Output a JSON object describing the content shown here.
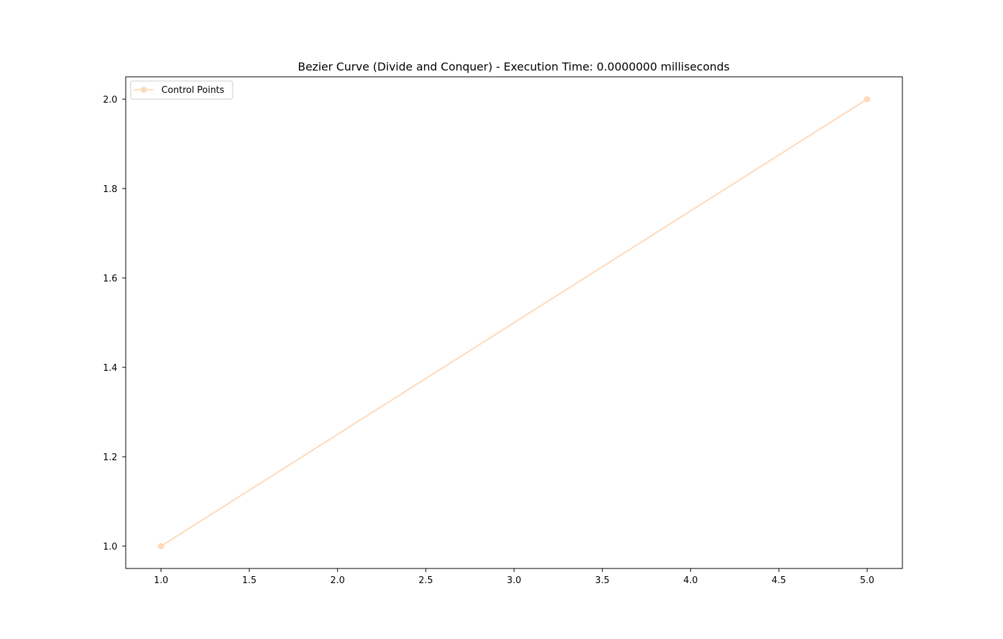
{
  "chart_data": {
    "type": "line",
    "title": "Bezier Curve (Divide and Conquer) - Execution Time: 0.0000000 milliseconds",
    "xlabel": "",
    "ylabel": "",
    "xlim": [
      0.8,
      5.2
    ],
    "ylim": [
      0.95,
      2.05
    ],
    "xticks": [
      1.0,
      1.5,
      2.0,
      2.5,
      3.0,
      3.5,
      4.0,
      4.5,
      5.0
    ],
    "xtick_labels": [
      "1.0",
      "1.5",
      "2.0",
      "2.5",
      "3.0",
      "3.5",
      "4.0",
      "4.5",
      "5.0"
    ],
    "yticks": [
      1.0,
      1.2,
      1.4,
      1.6,
      1.8,
      2.0
    ],
    "ytick_labels": [
      "1.0",
      "1.2",
      "1.4",
      "1.6",
      "1.8",
      "2.0"
    ],
    "grid": false,
    "legend_position": "upper-left",
    "series": [
      {
        "name": "Control Points",
        "color": "#FFDAB9",
        "marker": "circle",
        "x": [
          1.0,
          5.0
        ],
        "y": [
          1.0,
          2.0
        ]
      }
    ]
  }
}
